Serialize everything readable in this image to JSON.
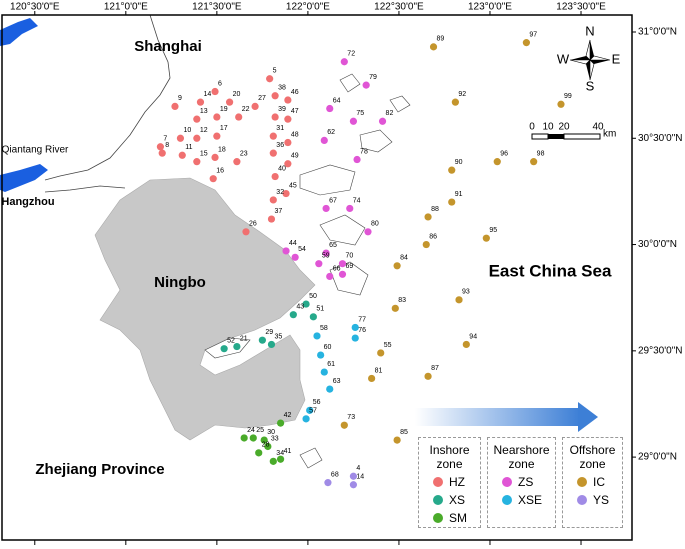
{
  "map": {
    "xlim": [
      120.32,
      123.78
    ],
    "ylim": [
      28.61,
      31.08
    ],
    "xticks": [
      {
        "value": 120.5,
        "label": "120°30'0\"E"
      },
      {
        "value": 121.0,
        "label": "121°0'0\"E"
      },
      {
        "value": 121.5,
        "label": "121°30'0\"E"
      },
      {
        "value": 122.0,
        "label": "122°0'0\"E"
      },
      {
        "value": 122.5,
        "label": "122°30'0\"E"
      },
      {
        "value": 123.0,
        "label": "123°0'0\"E"
      },
      {
        "value": 123.5,
        "label": "123°30'0\"E"
      }
    ],
    "yticks": [
      {
        "value": 31.0,
        "label": "31°0'0\"N"
      },
      {
        "value": 30.5,
        "label": "30°30'0\"N"
      },
      {
        "value": 30.0,
        "label": "30°0'0\"N"
      },
      {
        "value": 29.5,
        "label": "29°30'0\"N"
      },
      {
        "value": 29.0,
        "label": "29°0'0\"N"
      }
    ],
    "place_labels": {
      "shanghai": "Shanghai",
      "river": "Qiantang River",
      "hangzhou": "Hangzhou",
      "ningbo": "Ningbo",
      "sea": "East China Sea",
      "province": "Zhejiang Province"
    },
    "compass": {
      "n": "N",
      "s": "S",
      "w": "W",
      "e": "E"
    },
    "scale": {
      "labels": [
        "0",
        "10",
        "20",
        "40"
      ],
      "unit": "km"
    },
    "zones": [
      {
        "name": "Inshore zone",
        "groups": [
          {
            "name": "HZ",
            "color": "#f07070",
            "stations": [
              {
                "label": "5",
                "lon": 121.79,
                "lat": 30.78
              },
              {
                "label": "6",
                "lon": 121.49,
                "lat": 30.72
              },
              {
                "label": "9",
                "lon": 121.27,
                "lat": 30.65
              },
              {
                "label": "14",
                "lon": 121.41,
                "lat": 30.67
              },
              {
                "label": "20",
                "lon": 121.57,
                "lat": 30.67
              },
              {
                "label": "27",
                "lon": 121.71,
                "lat": 30.65
              },
              {
                "label": "38",
                "lon": 121.82,
                "lat": 30.7
              },
              {
                "label": "46",
                "lon": 121.89,
                "lat": 30.68
              },
              {
                "label": "13",
                "lon": 121.39,
                "lat": 30.59
              },
              {
                "label": "19",
                "lon": 121.5,
                "lat": 30.6
              },
              {
                "label": "22",
                "lon": 121.62,
                "lat": 30.6
              },
              {
                "label": "39",
                "lon": 121.82,
                "lat": 30.6
              },
              {
                "label": "47",
                "lon": 121.89,
                "lat": 30.59
              },
              {
                "label": "10",
                "lon": 121.3,
                "lat": 30.5
              },
              {
                "label": "12",
                "lon": 121.39,
                "lat": 30.5
              },
              {
                "label": "17",
                "lon": 121.5,
                "lat": 30.51
              },
              {
                "label": "31",
                "lon": 121.81,
                "lat": 30.51
              },
              {
                "label": "48",
                "lon": 121.89,
                "lat": 30.48
              },
              {
                "label": "7",
                "lon": 121.19,
                "lat": 30.46
              },
              {
                "label": "8",
                "lon": 121.2,
                "lat": 30.43
              },
              {
                "label": "11",
                "lon": 121.31,
                "lat": 30.42
              },
              {
                "label": "15",
                "lon": 121.39,
                "lat": 30.39
              },
              {
                "label": "18",
                "lon": 121.49,
                "lat": 30.41
              },
              {
                "label": "23",
                "lon": 121.61,
                "lat": 30.39
              },
              {
                "label": "36",
                "lon": 121.81,
                "lat": 30.43
              },
              {
                "label": "49",
                "lon": 121.89,
                "lat": 30.38
              },
              {
                "label": "16",
                "lon": 121.48,
                "lat": 30.31
              },
              {
                "label": "40",
                "lon": 121.82,
                "lat": 30.32
              },
              {
                "label": "45",
                "lon": 121.88,
                "lat": 30.24
              },
              {
                "label": "32",
                "lon": 121.81,
                "lat": 30.21
              },
              {
                "label": "37",
                "lon": 121.8,
                "lat": 30.12
              },
              {
                "label": "26",
                "lon": 121.66,
                "lat": 30.06
              }
            ]
          },
          {
            "name": "XS",
            "color": "#26a98b",
            "stations": [
              {
                "label": "50",
                "lon": 121.99,
                "lat": 29.72
              },
              {
                "label": "43",
                "lon": 121.92,
                "lat": 29.67
              },
              {
                "label": "51",
                "lon": 122.03,
                "lat": 29.66
              },
              {
                "label": "29",
                "lon": 121.75,
                "lat": 29.55
              },
              {
                "label": "35",
                "lon": 121.8,
                "lat": 29.53
              },
              {
                "label": "21",
                "lon": 121.61,
                "lat": 29.52
              },
              {
                "label": "52",
                "lon": 121.54,
                "lat": 29.51
              }
            ]
          },
          {
            "name": "SM",
            "color": "#4aab2a",
            "stations": [
              {
                "label": "42",
                "lon": 121.85,
                "lat": 29.16
              },
              {
                "label": "24",
                "lon": 121.65,
                "lat": 29.09
              },
              {
                "label": "25",
                "lon": 121.7,
                "lat": 29.09
              },
              {
                "label": "30",
                "lon": 121.76,
                "lat": 29.08
              },
              {
                "label": "33",
                "lon": 121.78,
                "lat": 29.05
              },
              {
                "label": "28",
                "lon": 121.73,
                "lat": 29.02
              },
              {
                "label": "41",
                "lon": 121.85,
                "lat": 28.99
              },
              {
                "label": "34",
                "lon": 121.81,
                "lat": 28.98
              }
            ]
          }
        ]
      },
      {
        "name": "Nearshore zone",
        "groups": [
          {
            "name": "ZS",
            "color": "#e055d5",
            "stations": [
              {
                "label": "72",
                "lon": 122.2,
                "lat": 30.86
              },
              {
                "label": "79",
                "lon": 122.32,
                "lat": 30.75
              },
              {
                "label": "64",
                "lon": 122.12,
                "lat": 30.64
              },
              {
                "label": "75",
                "lon": 122.25,
                "lat": 30.58
              },
              {
                "label": "82",
                "lon": 122.41,
                "lat": 30.58
              },
              {
                "label": "62",
                "lon": 122.09,
                "lat": 30.49
              },
              {
                "label": "78",
                "lon": 122.27,
                "lat": 30.4
              },
              {
                "label": "67",
                "lon": 122.1,
                "lat": 30.17
              },
              {
                "label": "74",
                "lon": 122.23,
                "lat": 30.17
              },
              {
                "label": "80",
                "lon": 122.33,
                "lat": 30.06
              },
              {
                "label": "44",
                "lon": 121.88,
                "lat": 29.97
              },
              {
                "label": "54",
                "lon": 121.93,
                "lat": 29.94
              },
              {
                "label": "65",
                "lon": 122.1,
                "lat": 29.96
              },
              {
                "label": "59",
                "lon": 122.06,
                "lat": 29.91
              },
              {
                "label": "70",
                "lon": 122.19,
                "lat": 29.91
              },
              {
                "label": "66",
                "lon": 122.12,
                "lat": 29.85
              },
              {
                "label": "69",
                "lon": 122.19,
                "lat": 29.86
              }
            ]
          },
          {
            "name": "XSE",
            "color": "#26b3e0",
            "stations": [
              {
                "label": "77",
                "lon": 122.26,
                "lat": 29.61
              },
              {
                "label": "76",
                "lon": 122.26,
                "lat": 29.56
              },
              {
                "label": "58",
                "lon": 122.05,
                "lat": 29.57
              },
              {
                "label": "60",
                "lon": 122.07,
                "lat": 29.48
              },
              {
                "label": "61",
                "lon": 122.09,
                "lat": 29.4
              },
              {
                "label": "63",
                "lon": 122.12,
                "lat": 29.32
              },
              {
                "label": "56",
                "lon": 122.01,
                "lat": 29.22
              },
              {
                "label": "57",
                "lon": 121.99,
                "lat": 29.18
              }
            ]
          }
        ]
      },
      {
        "name": "Offshore zone",
        "groups": [
          {
            "name": "IC",
            "color": "#c4952c",
            "stations": [
              {
                "label": "89",
                "lon": 122.69,
                "lat": 30.93
              },
              {
                "label": "97",
                "lon": 123.2,
                "lat": 30.95
              },
              {
                "label": "92",
                "lon": 122.81,
                "lat": 30.67
              },
              {
                "label": "99",
                "lon": 123.39,
                "lat": 30.66
              },
              {
                "label": "90",
                "lon": 122.79,
                "lat": 30.35
              },
              {
                "label": "96",
                "lon": 123.04,
                "lat": 30.39
              },
              {
                "label": "98",
                "lon": 123.24,
                "lat": 30.39
              },
              {
                "label": "91",
                "lon": 122.79,
                "lat": 30.2
              },
              {
                "label": "88",
                "lon": 122.66,
                "lat": 30.13
              },
              {
                "label": "95",
                "lon": 122.98,
                "lat": 30.03
              },
              {
                "label": "86",
                "lon": 122.65,
                "lat": 30.0
              },
              {
                "label": "84",
                "lon": 122.49,
                "lat": 29.9
              },
              {
                "label": "93",
                "lon": 122.83,
                "lat": 29.74
              },
              {
                "label": "83",
                "lon": 122.48,
                "lat": 29.7
              },
              {
                "label": "94",
                "lon": 122.87,
                "lat": 29.53
              },
              {
                "label": "55",
                "lon": 122.4,
                "lat": 29.49
              },
              {
                "label": "87",
                "lon": 122.66,
                "lat": 29.38
              },
              {
                "label": "81",
                "lon": 122.35,
                "lat": 29.37
              },
              {
                "label": "73",
                "lon": 122.2,
                "lat": 29.15
              },
              {
                "label": "85",
                "lon": 122.49,
                "lat": 29.08
              }
            ]
          },
          {
            "name": "YS",
            "color": "#a08be6",
            "stations": [
              {
                "label": "68",
                "lon": 122.11,
                "lat": 28.88
              },
              {
                "label": "4",
                "lon": 122.25,
                "lat": 28.91
              },
              {
                "label": "14",
                "lon": 122.25,
                "lat": 28.87
              }
            ]
          }
        ]
      }
    ]
  }
}
